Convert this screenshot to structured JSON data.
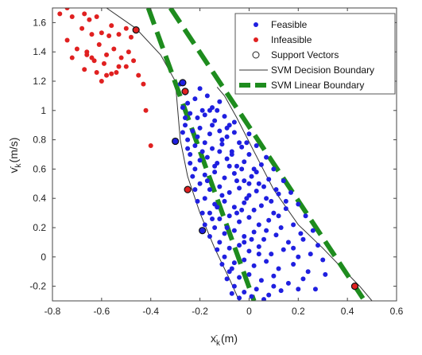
{
  "chart_data": {
    "type": "scatter",
    "xlabel": "x_k (m)",
    "ylabel": "v_k (m/s)",
    "xlim": [
      -0.8,
      0.6
    ],
    "ylim": [
      -0.3,
      1.7
    ],
    "xticks": [
      -0.8,
      -0.6,
      -0.4,
      -0.2,
      0,
      0.2,
      0.4,
      0.6
    ],
    "xtick_labels": [
      "-0.8",
      "-0.6",
      "-0.4",
      "-0.2",
      "0",
      "0.2",
      "0.4",
      "0.6"
    ],
    "yticks": [
      -0.2,
      0,
      0.2,
      0.4,
      0.6,
      0.8,
      1.0,
      1.2,
      1.4,
      1.6
    ],
    "ytick_labels": [
      "-0.2",
      "0",
      "0.2",
      "0.4",
      "0.6",
      "0.8",
      "1",
      "1.2",
      "1.4",
      "1.6"
    ],
    "grid": false,
    "legend_position": "top-right",
    "series": [
      {
        "name": "Feasible",
        "kind": "scatter",
        "color": "#1f1fe0",
        "points": [
          [
            -0.28,
            1.18
          ],
          [
            -0.26,
            1.12
          ],
          [
            -0.25,
            1.05
          ],
          [
            -0.22,
            1.08
          ],
          [
            -0.2,
            1.15
          ],
          [
            -0.17,
            1.1
          ],
          [
            -0.15,
            1.02
          ],
          [
            -0.12,
            1.06
          ],
          [
            -0.24,
            0.98
          ],
          [
            -0.21,
            0.95
          ],
          [
            -0.18,
            0.97
          ],
          [
            -0.14,
            0.93
          ],
          [
            -0.1,
            0.96
          ],
          [
            -0.08,
            0.9
          ],
          [
            -0.26,
            0.9
          ],
          [
            -0.23,
            0.86
          ],
          [
            -0.2,
            0.88
          ],
          [
            -0.16,
            0.84
          ],
          [
            -0.12,
            0.86
          ],
          [
            -0.09,
            0.82
          ],
          [
            -0.06,
            0.85
          ],
          [
            -0.04,
            0.78
          ],
          [
            -0.25,
            0.8
          ],
          [
            -0.22,
            0.76
          ],
          [
            -0.18,
            0.78
          ],
          [
            -0.15,
            0.74
          ],
          [
            -0.11,
            0.77
          ],
          [
            -0.07,
            0.72
          ],
          [
            -0.03,
            0.75
          ],
          [
            0.0,
            0.7
          ],
          [
            -0.24,
            0.7
          ],
          [
            -0.2,
            0.66
          ],
          [
            -0.17,
            0.68
          ],
          [
            -0.13,
            0.64
          ],
          [
            -0.09,
            0.67
          ],
          [
            -0.05,
            0.62
          ],
          [
            -0.02,
            0.65
          ],
          [
            0.02,
            0.6
          ],
          [
            0.05,
            0.63
          ],
          [
            -0.22,
            0.6
          ],
          [
            -0.18,
            0.56
          ],
          [
            -0.14,
            0.58
          ],
          [
            -0.1,
            0.54
          ],
          [
            -0.06,
            0.57
          ],
          [
            -0.02,
            0.52
          ],
          [
            0.01,
            0.55
          ],
          [
            0.04,
            0.5
          ],
          [
            0.08,
            0.53
          ],
          [
            -0.2,
            0.5
          ],
          [
            -0.16,
            0.46
          ],
          [
            -0.12,
            0.48
          ],
          [
            -0.08,
            0.44
          ],
          [
            -0.04,
            0.47
          ],
          [
            0.0,
            0.42
          ],
          [
            0.03,
            0.45
          ],
          [
            0.07,
            0.4
          ],
          [
            0.12,
            0.43
          ],
          [
            -0.18,
            0.4
          ],
          [
            -0.14,
            0.36
          ],
          [
            -0.1,
            0.38
          ],
          [
            -0.06,
            0.34
          ],
          [
            -0.02,
            0.37
          ],
          [
            0.02,
            0.32
          ],
          [
            0.05,
            0.35
          ],
          [
            0.1,
            0.3
          ],
          [
            0.15,
            0.33
          ],
          [
            -0.16,
            0.3
          ],
          [
            -0.12,
            0.26
          ],
          [
            -0.08,
            0.28
          ],
          [
            -0.04,
            0.24
          ],
          [
            0.0,
            0.27
          ],
          [
            0.04,
            0.22
          ],
          [
            0.08,
            0.25
          ],
          [
            0.13,
            0.2
          ],
          [
            0.18,
            0.22
          ],
          [
            -0.14,
            0.2
          ],
          [
            -0.1,
            0.16
          ],
          [
            -0.06,
            0.18
          ],
          [
            -0.02,
            0.14
          ],
          [
            0.02,
            0.17
          ],
          [
            0.06,
            0.12
          ],
          [
            0.11,
            0.15
          ],
          [
            0.16,
            0.1
          ],
          [
            0.22,
            0.12
          ],
          [
            -0.12,
            0.1
          ],
          [
            -0.08,
            0.06
          ],
          [
            -0.04,
            0.08
          ],
          [
            0.0,
            0.04
          ],
          [
            0.04,
            0.07
          ],
          [
            0.09,
            0.02
          ],
          [
            0.14,
            0.05
          ],
          [
            0.2,
            0.0
          ],
          [
            -0.1,
            0.0
          ],
          [
            -0.06,
            -0.04
          ],
          [
            -0.02,
            -0.02
          ],
          [
            0.02,
            -0.06
          ],
          [
            0.07,
            -0.03
          ],
          [
            0.12,
            -0.08
          ],
          [
            0.18,
            -0.05
          ],
          [
            0.24,
            -0.1
          ],
          [
            -0.08,
            -0.1
          ],
          [
            -0.04,
            -0.14
          ],
          [
            0.0,
            -0.12
          ],
          [
            0.05,
            -0.16
          ],
          [
            0.1,
            -0.13
          ],
          [
            0.16,
            -0.18
          ],
          [
            0.22,
            -0.15
          ],
          [
            0.27,
            -0.22
          ],
          [
            -0.06,
            -0.2
          ],
          [
            -0.02,
            -0.24
          ],
          [
            0.03,
            -0.22
          ],
          [
            0.08,
            -0.26
          ],
          [
            0.13,
            -0.23
          ],
          [
            -0.04,
            -0.28
          ],
          [
            0.01,
            -0.27
          ],
          [
            0.06,
            -0.29
          ],
          [
            -0.27,
            1.02
          ],
          [
            -0.26,
            0.95
          ],
          [
            -0.27,
            0.85
          ],
          [
            -0.25,
            0.74
          ],
          [
            -0.24,
            0.64
          ],
          [
            -0.23,
            0.55
          ],
          [
            -0.22,
            0.46
          ],
          [
            -0.21,
            0.38
          ],
          [
            -0.19,
            0.3
          ],
          [
            -0.18,
            0.22
          ],
          [
            -0.16,
            0.14
          ],
          [
            -0.13,
            0.05
          ],
          [
            -0.11,
            -0.05
          ],
          [
            -0.09,
            -0.15
          ],
          [
            -0.07,
            -0.25
          ],
          [
            -0.13,
            1.0
          ],
          [
            -0.06,
            0.92
          ],
          [
            0.0,
            0.84
          ],
          [
            0.03,
            0.76
          ],
          [
            0.07,
            0.68
          ],
          [
            0.1,
            0.6
          ],
          [
            0.14,
            0.52
          ],
          [
            0.17,
            0.44
          ],
          [
            0.2,
            0.36
          ],
          [
            0.23,
            0.28
          ],
          [
            0.26,
            0.18
          ],
          [
            0.28,
            0.08
          ],
          [
            0.3,
            -0.02
          ],
          [
            0.31,
            -0.12
          ],
          [
            -0.19,
            1.0
          ],
          [
            -0.15,
            0.9
          ],
          [
            -0.11,
            0.8
          ],
          [
            -0.07,
            0.7
          ],
          [
            -0.03,
            0.6
          ],
          [
            0.0,
            0.5
          ],
          [
            -0.01,
            0.4
          ],
          [
            -0.05,
            0.3
          ],
          [
            -0.09,
            0.2
          ],
          [
            0.07,
            0.18
          ],
          [
            0.12,
            0.28
          ],
          [
            0.09,
            0.38
          ],
          [
            0.06,
            0.48
          ],
          [
            -0.14,
            0.62
          ],
          [
            -0.19,
            0.72
          ],
          [
            -0.09,
            0.88
          ],
          [
            -0.16,
            1.0
          ],
          [
            -0.21,
            0.82
          ],
          [
            0.18,
            0.06
          ],
          [
            0.1,
            -0.2
          ],
          [
            0.04,
            0.02
          ],
          [
            -0.02,
            0.1
          ],
          [
            -0.07,
            -0.08
          ],
          [
            0.15,
            0.38
          ],
          [
            0.11,
            0.46
          ],
          [
            -0.01,
            0.78
          ],
          [
            -0.12,
            0.72
          ],
          [
            -0.17,
            0.52
          ],
          [
            -0.11,
            0.42
          ],
          [
            -0.03,
            0.32
          ],
          [
            0.01,
            0.12
          ],
          [
            0.21,
            0.16
          ],
          [
            0.25,
            0.02
          ],
          [
            0.2,
            -0.22
          ],
          [
            -0.05,
            0.52
          ],
          [
            -0.08,
            0.62
          ],
          [
            0.03,
            0.58
          ],
          [
            -0.15,
            0.26
          ],
          [
            -0.13,
            0.34
          ]
        ]
      },
      {
        "name": "Infeasible",
        "kind": "scatter",
        "color": "#e02020",
        "points": [
          [
            -0.77,
            1.66
          ],
          [
            -0.74,
            1.7
          ],
          [
            -0.72,
            1.64
          ],
          [
            -0.67,
            1.66
          ],
          [
            -0.65,
            1.62
          ],
          [
            -0.62,
            1.64
          ],
          [
            -0.68,
            1.56
          ],
          [
            -0.64,
            1.52
          ],
          [
            -0.6,
            1.53
          ],
          [
            -0.57,
            1.51
          ],
          [
            -0.53,
            1.52
          ],
          [
            -0.5,
            1.56
          ],
          [
            -0.56,
            1.58
          ],
          [
            -0.48,
            1.5
          ],
          [
            -0.74,
            1.48
          ],
          [
            -0.7,
            1.42
          ],
          [
            -0.66,
            1.38
          ],
          [
            -0.63,
            1.34
          ],
          [
            -0.58,
            1.38
          ],
          [
            -0.55,
            1.42
          ],
          [
            -0.52,
            1.36
          ],
          [
            -0.49,
            1.4
          ],
          [
            -0.67,
            1.28
          ],
          [
            -0.62,
            1.26
          ],
          [
            -0.58,
            1.24
          ],
          [
            -0.54,
            1.26
          ],
          [
            -0.5,
            1.3
          ],
          [
            -0.47,
            1.34
          ],
          [
            -0.64,
            1.36
          ],
          [
            -0.6,
            1.2
          ],
          [
            -0.45,
            1.24
          ],
          [
            -0.43,
            1.18
          ],
          [
            -0.42,
            1.0
          ],
          [
            -0.4,
            0.76
          ],
          [
            -0.72,
            1.36
          ],
          [
            -0.59,
            1.32
          ],
          [
            -0.53,
            1.3
          ],
          [
            -0.56,
            1.25
          ],
          [
            -0.61,
            1.45
          ],
          [
            -0.66,
            1.4
          ]
        ]
      },
      {
        "name": "Support Vectors",
        "kind": "support",
        "points": [
          {
            "x": -0.46,
            "y": 1.55,
            "fill": "#e02020"
          },
          {
            "x": -0.27,
            "y": 1.19,
            "fill": "#1f1fe0"
          },
          {
            "x": -0.26,
            "y": 1.13,
            "fill": "#e02020"
          },
          {
            "x": -0.3,
            "y": 0.79,
            "fill": "#1f1fe0"
          },
          {
            "x": -0.25,
            "y": 0.46,
            "fill": "#e02020"
          },
          {
            "x": -0.19,
            "y": 0.18,
            "fill": "#1f1fe0"
          },
          {
            "x": 0.43,
            "y": -0.2,
            "fill": "#e02020"
          }
        ]
      },
      {
        "name": "SVM Decision Boundary",
        "kind": "line",
        "color": "#333333",
        "curves": [
          [
            [
              -0.58,
              1.7
            ],
            [
              -0.46,
              1.56
            ],
            [
              -0.36,
              1.38
            ],
            [
              -0.3,
              1.2
            ],
            [
              -0.29,
              1.0
            ],
            [
              -0.28,
              0.8
            ],
            [
              -0.25,
              0.55
            ],
            [
              -0.2,
              0.3
            ],
            [
              -0.14,
              0.06
            ],
            [
              -0.08,
              -0.15
            ],
            [
              -0.04,
              -0.3
            ]
          ],
          [
            [
              -0.13,
              1.16
            ],
            [
              -0.1,
              1.1
            ],
            [
              -0.05,
              0.95
            ],
            [
              0.02,
              0.72
            ],
            [
              0.1,
              0.46
            ],
            [
              0.2,
              0.22
            ],
            [
              0.3,
              0.06
            ],
            [
              0.38,
              -0.08
            ],
            [
              0.45,
              -0.2
            ],
            [
              0.5,
              -0.3
            ]
          ],
          [
            [
              0.08,
              1.56
            ],
            [
              0.13,
              1.58
            ],
            [
              0.18,
              1.62
            ],
            [
              0.24,
              1.64
            ],
            [
              0.27,
              1.66
            ]
          ]
        ]
      },
      {
        "name": "SVM Linear Boundary",
        "kind": "dashed-line",
        "color": "#1e8c1e",
        "lines": [
          [
            [
              -0.41,
              1.7
            ],
            [
              0.02,
              -0.3
            ]
          ],
          [
            [
              -0.32,
              1.7
            ],
            [
              0.47,
              -0.3
            ]
          ]
        ]
      }
    ]
  }
}
